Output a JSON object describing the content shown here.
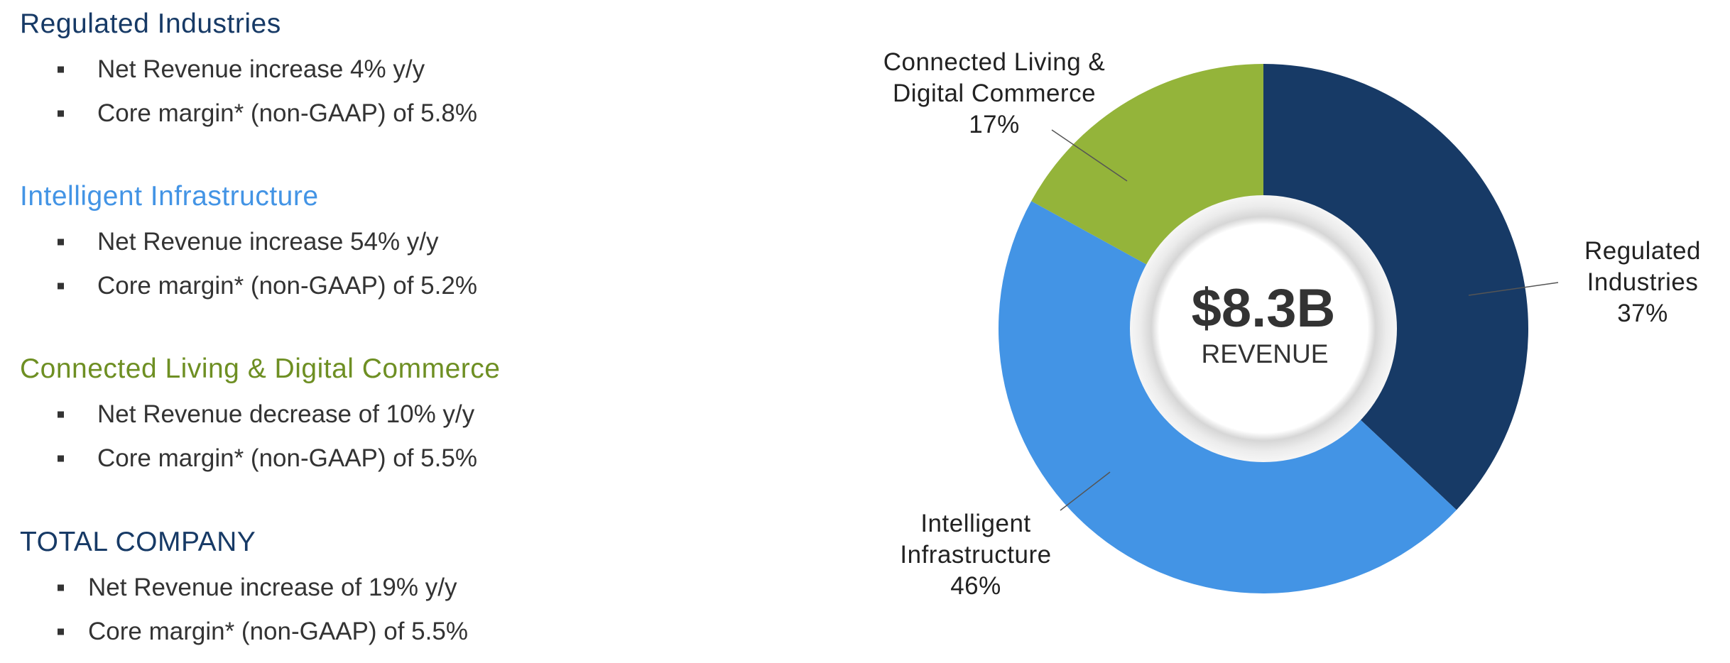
{
  "sections": [
    {
      "title": "Regulated Industries",
      "bullets": [
        "Net Revenue increase 4% y/y",
        "Core margin* (non-GAAP) of 5.8%"
      ]
    },
    {
      "title": "Intelligent Infrastructure",
      "bullets": [
        "Net Revenue increase 54% y/y",
        "Core margin* (non-GAAP) of 5.2%"
      ]
    },
    {
      "title": "Connected Living & Digital Commerce",
      "bullets": [
        "Net Revenue decrease of 10% y/y",
        "Core margin* (non-GAAP) of 5.5%"
      ]
    },
    {
      "title": "TOTAL COMPANY",
      "bullets": [
        "Net Revenue increase of 19% y/y",
        "Core margin* (non-GAAP) of 5.5%"
      ]
    }
  ],
  "chart_data": {
    "type": "pie",
    "donut": true,
    "categories": [
      "Regulated Industries",
      "Intelligent Infrastructure",
      "Connected Living & Digital Commerce"
    ],
    "values": [
      37,
      46,
      17
    ],
    "value_labels": [
      "37%",
      "46%",
      "17%"
    ],
    "colors": [
      "#173a66",
      "#4394e5",
      "#94b43a"
    ],
    "center_title": "$8.3B",
    "center_subtitle": "REVENUE"
  }
}
